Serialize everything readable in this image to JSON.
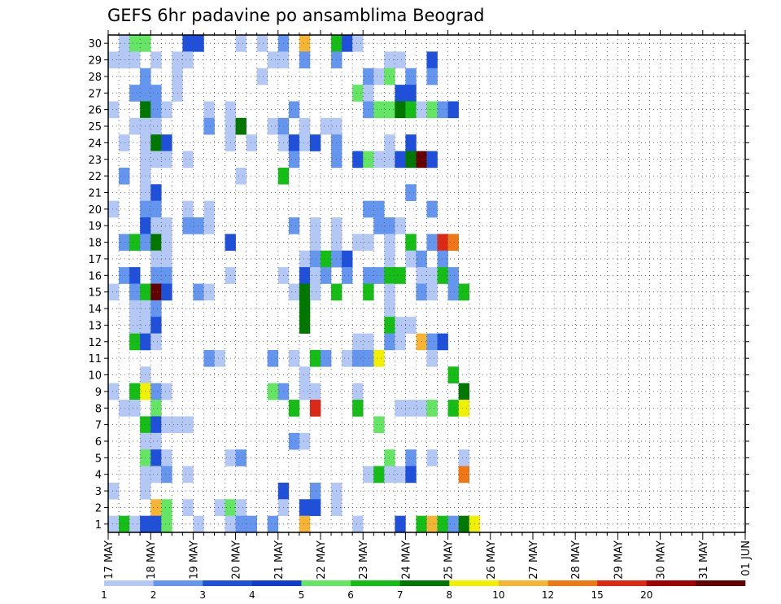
{
  "chart_data": {
    "type": "heatmap",
    "title": "GEFS 6hr padavine po ansamblima Beograd",
    "xlabel": "",
    "ylabel": "",
    "x_ticks": [
      "17 MAY",
      "18 MAY",
      "19 MAY",
      "20 MAY",
      "21 MAY",
      "22 MAY",
      "23 MAY",
      "24 MAY",
      "25 MAY",
      "26 MAY",
      "27 MAY",
      "28 MAY",
      "29 MAY",
      "30 MAY",
      "31 MAY",
      "01 JUN"
    ],
    "y_ticks": [
      "1",
      "2",
      "3",
      "4",
      "5",
      "6",
      "7",
      "8",
      "9",
      "10",
      "11",
      "12",
      "13",
      "14",
      "15",
      "16",
      "17",
      "18",
      "19",
      "20",
      "21",
      "22",
      "23",
      "24",
      "25",
      "26",
      "27",
      "28",
      "29",
      "30"
    ],
    "grid": "dotted",
    "legend": {
      "placement": "bottom",
      "labels": [
        "1",
        "2",
        "3",
        "4",
        "5",
        "6",
        "7",
        "8",
        "10",
        "12",
        "15",
        "20"
      ],
      "colors": [
        "#b4c8f5",
        "#6496f0",
        "#1e50dc",
        "#0f3ccd",
        "#64e664",
        "#14be14",
        "#007800",
        "#f0f000",
        "#f5b432",
        "#f07814",
        "#dc2814",
        "#a00000",
        "#640000"
      ]
    },
    "palette": [
      "#ffffff",
      "#b4c8f5",
      "#6496f0",
      "#1e50dc",
      "#64e664",
      "#14be14",
      "#007800",
      "#f0f000",
      "#f5b432",
      "#f07814",
      "#dc2814",
      "#a00000",
      "#640000"
    ],
    "times_per_day": 4,
    "members": 30,
    "cells": [
      [
        30,
        1,
        1
      ],
      [
        30,
        2,
        4
      ],
      [
        30,
        3,
        4
      ],
      [
        30,
        7,
        3
      ],
      [
        30,
        8,
        3
      ],
      [
        30,
        12,
        1
      ],
      [
        30,
        14,
        1
      ],
      [
        30,
        16,
        2
      ],
      [
        30,
        18,
        8
      ],
      [
        30,
        21,
        5
      ],
      [
        30,
        22,
        3
      ],
      [
        30,
        23,
        1
      ],
      [
        29,
        0,
        1
      ],
      [
        29,
        1,
        1
      ],
      [
        29,
        2,
        1
      ],
      [
        29,
        4,
        1
      ],
      [
        29,
        6,
        1
      ],
      [
        29,
        7,
        1
      ],
      [
        29,
        15,
        1
      ],
      [
        29,
        16,
        1
      ],
      [
        29,
        18,
        2
      ],
      [
        29,
        21,
        2
      ],
      [
        29,
        26,
        1
      ],
      [
        29,
        27,
        1
      ],
      [
        29,
        30,
        3
      ],
      [
        28,
        3,
        2
      ],
      [
        28,
        6,
        1
      ],
      [
        28,
        14,
        1
      ],
      [
        28,
        24,
        2
      ],
      [
        28,
        25,
        1
      ],
      [
        28,
        26,
        4
      ],
      [
        28,
        28,
        2
      ],
      [
        28,
        30,
        2
      ],
      [
        27,
        2,
        2
      ],
      [
        27,
        3,
        2
      ],
      [
        27,
        4,
        2
      ],
      [
        27,
        6,
        1
      ],
      [
        27,
        23,
        4
      ],
      [
        27,
        24,
        1
      ],
      [
        27,
        27,
        3
      ],
      [
        27,
        28,
        3
      ],
      [
        26,
        0,
        1
      ],
      [
        26,
        3,
        6
      ],
      [
        26,
        4,
        2
      ],
      [
        26,
        5,
        1
      ],
      [
        26,
        9,
        1
      ],
      [
        26,
        11,
        1
      ],
      [
        26,
        17,
        2
      ],
      [
        26,
        24,
        2
      ],
      [
        26,
        25,
        4
      ],
      [
        26,
        26,
        4
      ],
      [
        26,
        27,
        6
      ],
      [
        26,
        28,
        5
      ],
      [
        26,
        29,
        1
      ],
      [
        26,
        30,
        4
      ],
      [
        26,
        31,
        2
      ],
      [
        26,
        32,
        3
      ],
      [
        25,
        2,
        1
      ],
      [
        25,
        3,
        1
      ],
      [
        25,
        4,
        1
      ],
      [
        25,
        9,
        2
      ],
      [
        25,
        11,
        1
      ],
      [
        25,
        12,
        6
      ],
      [
        25,
        15,
        1
      ],
      [
        25,
        16,
        2
      ],
      [
        25,
        18,
        1
      ],
      [
        25,
        20,
        1
      ],
      [
        25,
        21,
        1
      ],
      [
        24,
        1,
        1
      ],
      [
        24,
        3,
        1
      ],
      [
        24,
        4,
        6
      ],
      [
        24,
        5,
        3
      ],
      [
        24,
        11,
        1
      ],
      [
        24,
        13,
        1
      ],
      [
        24,
        16,
        1
      ],
      [
        24,
        17,
        3
      ],
      [
        24,
        18,
        1
      ],
      [
        24,
        19,
        3
      ],
      [
        24,
        21,
        2
      ],
      [
        24,
        26,
        1
      ],
      [
        24,
        28,
        3
      ],
      [
        23,
        3,
        1
      ],
      [
        23,
        4,
        1
      ],
      [
        23,
        5,
        1
      ],
      [
        23,
        7,
        1
      ],
      [
        23,
        17,
        2
      ],
      [
        23,
        21,
        2
      ],
      [
        23,
        23,
        3
      ],
      [
        23,
        24,
        4
      ],
      [
        23,
        25,
        1
      ],
      [
        23,
        26,
        1
      ],
      [
        23,
        27,
        3
      ],
      [
        23,
        28,
        6
      ],
      [
        23,
        29,
        12
      ],
      [
        23,
        30,
        3
      ],
      [
        22,
        1,
        2
      ],
      [
        22,
        3,
        1
      ],
      [
        22,
        12,
        1
      ],
      [
        22,
        16,
        5
      ],
      [
        21,
        3,
        1
      ],
      [
        21,
        4,
        3
      ],
      [
        21,
        28,
        2
      ],
      [
        20,
        0,
        1
      ],
      [
        20,
        3,
        2
      ],
      [
        20,
        4,
        2
      ],
      [
        20,
        7,
        1
      ],
      [
        20,
        9,
        1
      ],
      [
        20,
        24,
        2
      ],
      [
        20,
        25,
        2
      ],
      [
        20,
        30,
        2
      ],
      [
        19,
        3,
        3
      ],
      [
        19,
        4,
        1
      ],
      [
        19,
        5,
        1
      ],
      [
        19,
        7,
        2
      ],
      [
        19,
        8,
        2
      ],
      [
        19,
        9,
        1
      ],
      [
        19,
        17,
        2
      ],
      [
        19,
        19,
        1
      ],
      [
        19,
        21,
        1
      ],
      [
        19,
        25,
        2
      ],
      [
        19,
        26,
        2
      ],
      [
        19,
        27,
        1
      ],
      [
        18,
        1,
        2
      ],
      [
        18,
        2,
        5
      ],
      [
        18,
        3,
        2
      ],
      [
        18,
        4,
        6
      ],
      [
        18,
        5,
        1
      ],
      [
        18,
        11,
        3
      ],
      [
        18,
        19,
        1
      ],
      [
        18,
        21,
        1
      ],
      [
        18,
        23,
        1
      ],
      [
        18,
        24,
        1
      ],
      [
        18,
        26,
        1
      ],
      [
        18,
        28,
        5
      ],
      [
        18,
        30,
        2
      ],
      [
        18,
        31,
        10
      ],
      [
        18,
        32,
        9
      ],
      [
        17,
        4,
        1
      ],
      [
        17,
        5,
        1
      ],
      [
        17,
        18,
        1
      ],
      [
        17,
        19,
        2
      ],
      [
        17,
        20,
        5
      ],
      [
        17,
        21,
        2
      ],
      [
        17,
        22,
        3
      ],
      [
        17,
        26,
        1
      ],
      [
        17,
        28,
        1
      ],
      [
        17,
        29,
        2
      ],
      [
        17,
        31,
        2
      ],
      [
        16,
        1,
        2
      ],
      [
        16,
        2,
        3
      ],
      [
        16,
        4,
        2
      ],
      [
        16,
        5,
        2
      ],
      [
        16,
        11,
        1
      ],
      [
        16,
        16,
        1
      ],
      [
        16,
        18,
        3
      ],
      [
        16,
        19,
        1
      ],
      [
        16,
        20,
        2
      ],
      [
        16,
        22,
        2
      ],
      [
        16,
        24,
        2
      ],
      [
        16,
        25,
        2
      ],
      [
        16,
        26,
        5
      ],
      [
        16,
        27,
        5
      ],
      [
        16,
        29,
        1
      ],
      [
        16,
        30,
        1
      ],
      [
        16,
        31,
        5
      ],
      [
        16,
        32,
        2
      ],
      [
        15,
        0,
        1
      ],
      [
        15,
        2,
        2
      ],
      [
        15,
        3,
        5
      ],
      [
        15,
        4,
        12
      ],
      [
        15,
        5,
        3
      ],
      [
        15,
        8,
        2
      ],
      [
        15,
        9,
        1
      ],
      [
        15,
        17,
        1
      ],
      [
        15,
        18,
        6
      ],
      [
        15,
        19,
        1
      ],
      [
        15,
        21,
        5
      ],
      [
        15,
        24,
        5
      ],
      [
        15,
        26,
        1
      ],
      [
        15,
        29,
        2
      ],
      [
        15,
        30,
        1
      ],
      [
        15,
        32,
        2
      ],
      [
        15,
        33,
        5
      ],
      [
        14,
        2,
        1
      ],
      [
        14,
        3,
        1
      ],
      [
        14,
        4,
        2
      ],
      [
        14,
        18,
        6
      ],
      [
        14,
        26,
        1
      ],
      [
        13,
        2,
        1
      ],
      [
        13,
        3,
        1
      ],
      [
        13,
        4,
        3
      ],
      [
        13,
        18,
        6
      ],
      [
        13,
        26,
        5
      ],
      [
        13,
        27,
        1
      ],
      [
        13,
        28,
        1
      ],
      [
        12,
        2,
        5
      ],
      [
        12,
        3,
        3
      ],
      [
        12,
        4,
        1
      ],
      [
        12,
        23,
        1
      ],
      [
        12,
        24,
        1
      ],
      [
        12,
        26,
        2
      ],
      [
        12,
        27,
        1
      ],
      [
        12,
        29,
        8
      ],
      [
        12,
        30,
        2
      ],
      [
        12,
        31,
        3
      ],
      [
        11,
        9,
        2
      ],
      [
        11,
        10,
        1
      ],
      [
        11,
        15,
        2
      ],
      [
        11,
        17,
        1
      ],
      [
        11,
        19,
        5
      ],
      [
        11,
        20,
        2
      ],
      [
        11,
        22,
        1
      ],
      [
        11,
        23,
        2
      ],
      [
        11,
        24,
        2
      ],
      [
        11,
        25,
        7
      ],
      [
        11,
        30,
        1
      ],
      [
        10,
        3,
        1
      ],
      [
        10,
        18,
        1
      ],
      [
        10,
        32,
        5
      ],
      [
        9,
        0,
        1
      ],
      [
        9,
        2,
        5
      ],
      [
        9,
        3,
        7
      ],
      [
        9,
        4,
        2
      ],
      [
        9,
        5,
        1
      ],
      [
        9,
        15,
        4
      ],
      [
        9,
        16,
        2
      ],
      [
        9,
        18,
        1
      ],
      [
        9,
        19,
        1
      ],
      [
        9,
        23,
        1
      ],
      [
        9,
        33,
        6
      ],
      [
        8,
        1,
        1
      ],
      [
        8,
        2,
        1
      ],
      [
        8,
        4,
        4
      ],
      [
        8,
        17,
        5
      ],
      [
        8,
        19,
        10
      ],
      [
        8,
        23,
        5
      ],
      [
        8,
        27,
        1
      ],
      [
        8,
        28,
        1
      ],
      [
        8,
        29,
        1
      ],
      [
        8,
        30,
        4
      ],
      [
        8,
        32,
        5
      ],
      [
        8,
        33,
        7
      ],
      [
        7,
        3,
        5
      ],
      [
        7,
        4,
        3
      ],
      [
        7,
        5,
        1
      ],
      [
        7,
        6,
        1
      ],
      [
        7,
        7,
        1
      ],
      [
        7,
        25,
        4
      ],
      [
        6,
        3,
        1
      ],
      [
        6,
        4,
        1
      ],
      [
        6,
        17,
        2
      ],
      [
        6,
        18,
        1
      ],
      [
        5,
        3,
        4
      ],
      [
        5,
        4,
        3
      ],
      [
        5,
        5,
        1
      ],
      [
        5,
        11,
        1
      ],
      [
        5,
        12,
        2
      ],
      [
        5,
        26,
        4
      ],
      [
        5,
        28,
        2
      ],
      [
        5,
        30,
        1
      ],
      [
        5,
        33,
        1
      ],
      [
        4,
        3,
        1
      ],
      [
        4,
        4,
        1
      ],
      [
        4,
        5,
        2
      ],
      [
        4,
        7,
        1
      ],
      [
        4,
        24,
        1
      ],
      [
        4,
        25,
        5
      ],
      [
        4,
        26,
        1
      ],
      [
        4,
        27,
        1
      ],
      [
        4,
        28,
        3
      ],
      [
        4,
        33,
        9
      ],
      [
        3,
        0,
        1
      ],
      [
        3,
        3,
        1
      ],
      [
        3,
        16,
        3
      ],
      [
        3,
        19,
        2
      ],
      [
        3,
        21,
        1
      ],
      [
        2,
        4,
        8
      ],
      [
        2,
        5,
        4
      ],
      [
        2,
        7,
        1
      ],
      [
        2,
        10,
        1
      ],
      [
        2,
        11,
        4
      ],
      [
        2,
        12,
        1
      ],
      [
        2,
        16,
        1
      ],
      [
        2,
        18,
        3
      ],
      [
        2,
        19,
        3
      ],
      [
        2,
        21,
        1
      ],
      [
        1,
        0,
        1
      ],
      [
        1,
        1,
        5
      ],
      [
        1,
        2,
        1
      ],
      [
        1,
        3,
        3
      ],
      [
        1,
        4,
        3
      ],
      [
        1,
        5,
        4
      ],
      [
        1,
        8,
        1
      ],
      [
        1,
        11,
        1
      ],
      [
        1,
        12,
        2
      ],
      [
        1,
        13,
        2
      ],
      [
        1,
        15,
        2
      ],
      [
        1,
        18,
        8
      ],
      [
        1,
        23,
        1
      ],
      [
        1,
        27,
        3
      ],
      [
        1,
        29,
        5
      ],
      [
        1,
        30,
        8
      ],
      [
        1,
        31,
        5
      ],
      [
        1,
        32,
        2
      ],
      [
        1,
        33,
        6
      ],
      [
        1,
        34,
        7
      ]
    ]
  }
}
